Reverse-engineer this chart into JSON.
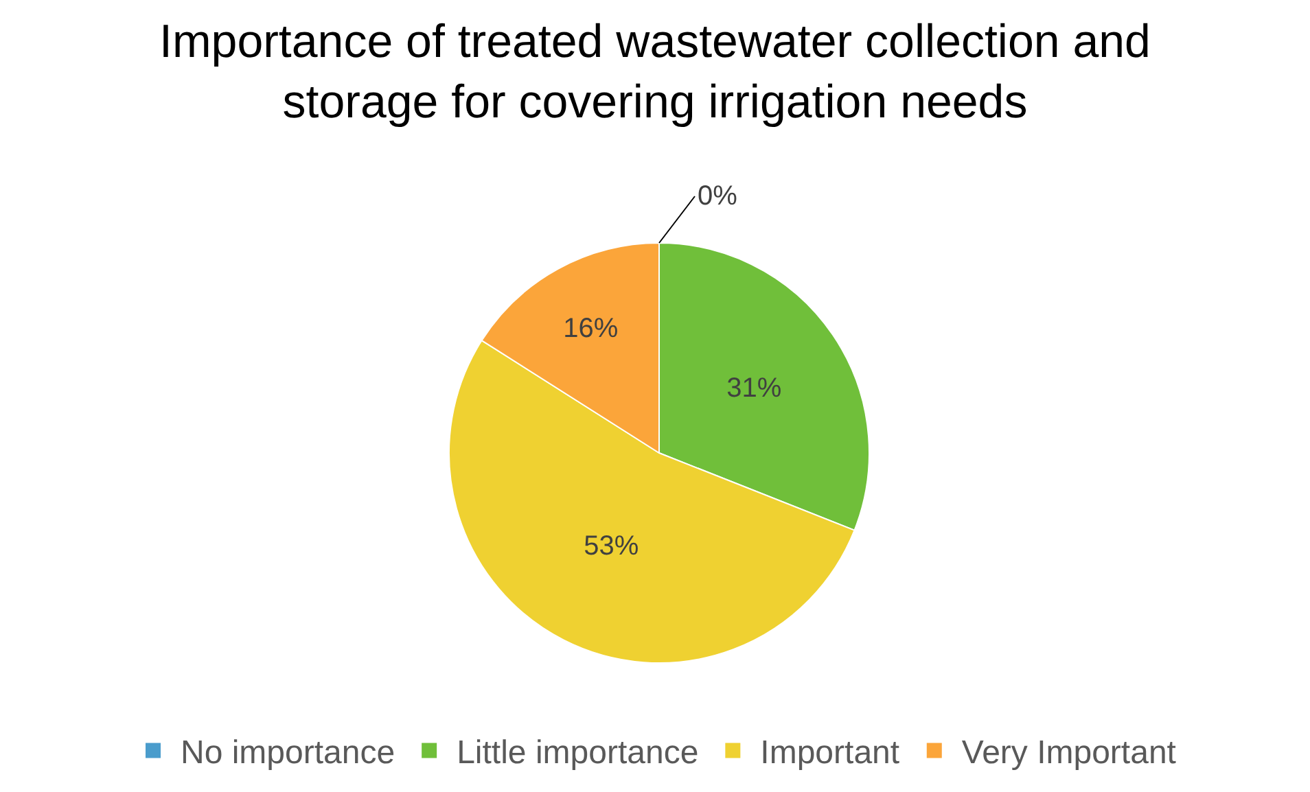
{
  "chart_data": {
    "type": "pie",
    "title": "Importance of treated wastewater collection and\nstorage for covering irrigation needs",
    "categories": [
      "No importance",
      "Little importance",
      "Important",
      "Very Important"
    ],
    "values": [
      0,
      31,
      53,
      16
    ],
    "value_labels": [
      "0%",
      "31%",
      "53%",
      "16%"
    ],
    "colors": [
      "#4a9ccc",
      "#70bf3a",
      "#efd131",
      "#fba53a"
    ],
    "legend": "bottom"
  }
}
